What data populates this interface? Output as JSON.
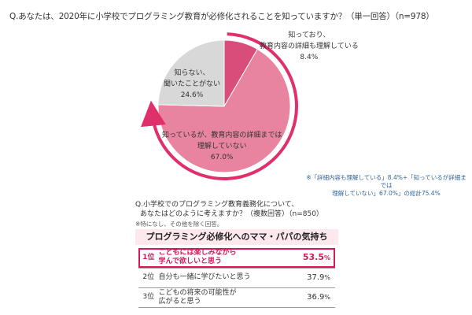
{
  "question1": "Q.あなたは、2020年に小学校でプログラミング教育が必修化されることを知っていますか？（単一回答）（n=978）",
  "chart_data": {
    "type": "pie",
    "title": "Q.あなたは、2020年に小学校でプログラミング教育が必修化されることを知っていますか？（単一回答）（n=978）",
    "slices": [
      {
        "label_lines": [
          "知っており、",
          "教育内容の詳細も理解している"
        ],
        "value": 8.4,
        "value_label": "8.4%",
        "color": "#d94d7a"
      },
      {
        "label_lines": [
          "知っているが、教育内容の詳細までは",
          "理解していない"
        ],
        "value": 67.0,
        "value_label": "67.0%",
        "color": "#e8849f"
      },
      {
        "label_lines": [
          "知らない、",
          "聞いたことがない"
        ],
        "value": 24.6,
        "value_label": "24.6%",
        "color": "#d8d8d8"
      }
    ],
    "note_lines": [
      "※「詳細内容も理解している」8.4%+「知っているが詳細までは",
      "理解していない」67.0%」の総計75.4%"
    ]
  },
  "question2": {
    "line1": "Q.小学校でのプログラミング教育義務化について、",
    "line2": "あなたはどのように考えますか？（複数回答）（n=850）",
    "sub": "※特になし、その他を除く回答。"
  },
  "ranking": {
    "title": "プログラミング必修化へのママ・パパの気持ち",
    "rows": [
      {
        "rank": "1位",
        "text": "こどもには楽しみながら\n学んで欲しいと思う",
        "value": "53.5",
        "unit": "%"
      },
      {
        "rank": "2位",
        "text": "自分も一緒に学びたいと思う",
        "value": "37.9",
        "unit": "%"
      },
      {
        "rank": "3位",
        "text": "こどもの将来の可能性が\n広がると思う",
        "value": "36.9",
        "unit": "%"
      }
    ]
  },
  "colors": {
    "accent": "#d6185b",
    "slice_pink": "#e8849f",
    "slice_dark": "#d94d7a",
    "slice_gray": "#d8d8d8"
  }
}
